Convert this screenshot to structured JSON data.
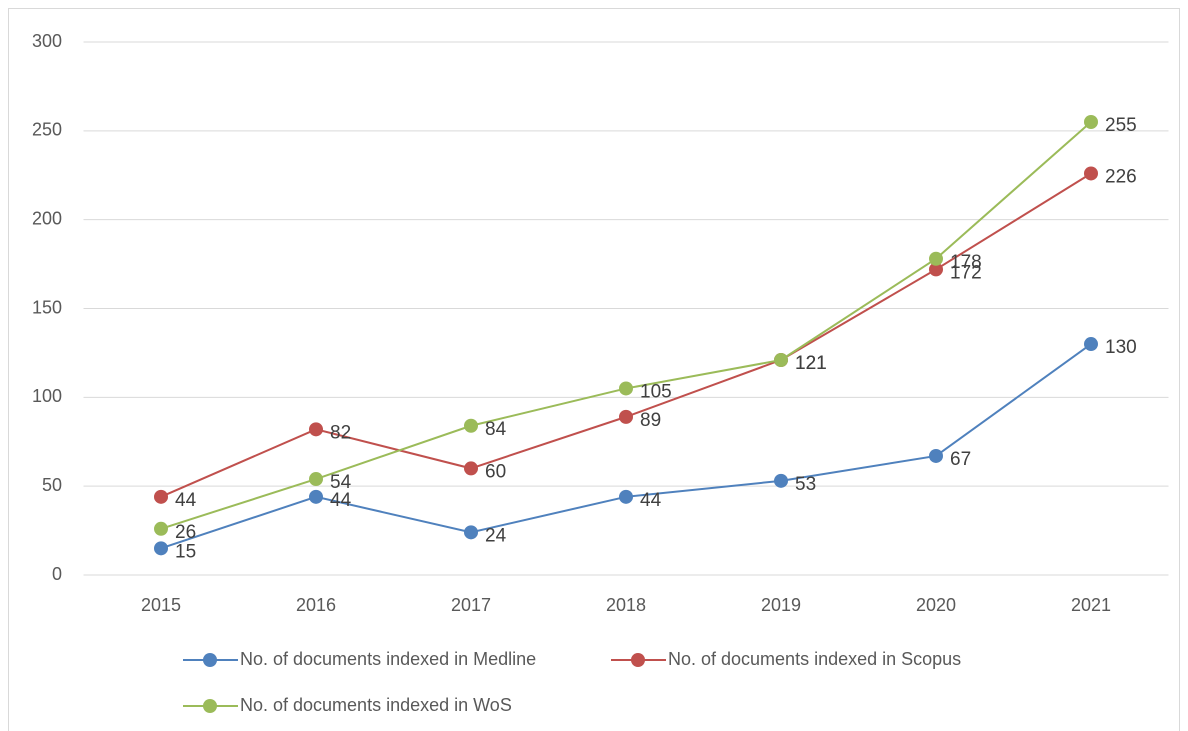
{
  "chart_data": {
    "type": "line",
    "categories": [
      "2015",
      "2016",
      "2017",
      "2018",
      "2019",
      "2020",
      "2021"
    ],
    "series": [
      {
        "name": "No. of documents indexed in Medline",
        "color": "#4f81bd",
        "values": [
          15,
          44,
          24,
          44,
          53,
          67,
          130
        ]
      },
      {
        "name": "No. of documents indexed in Scopus",
        "color": "#c0504d",
        "values": [
          44,
          82,
          60,
          89,
          121,
          172,
          226
        ]
      },
      {
        "name": "No. of documents indexed in WoS",
        "color": "#9bbb59",
        "values": [
          26,
          54,
          84,
          105,
          121,
          178,
          255
        ]
      }
    ],
    "ylim": [
      0,
      300
    ],
    "yticks": [
      0,
      50,
      100,
      150,
      200,
      250,
      300
    ],
    "grid": true,
    "legend": "bottom"
  }
}
